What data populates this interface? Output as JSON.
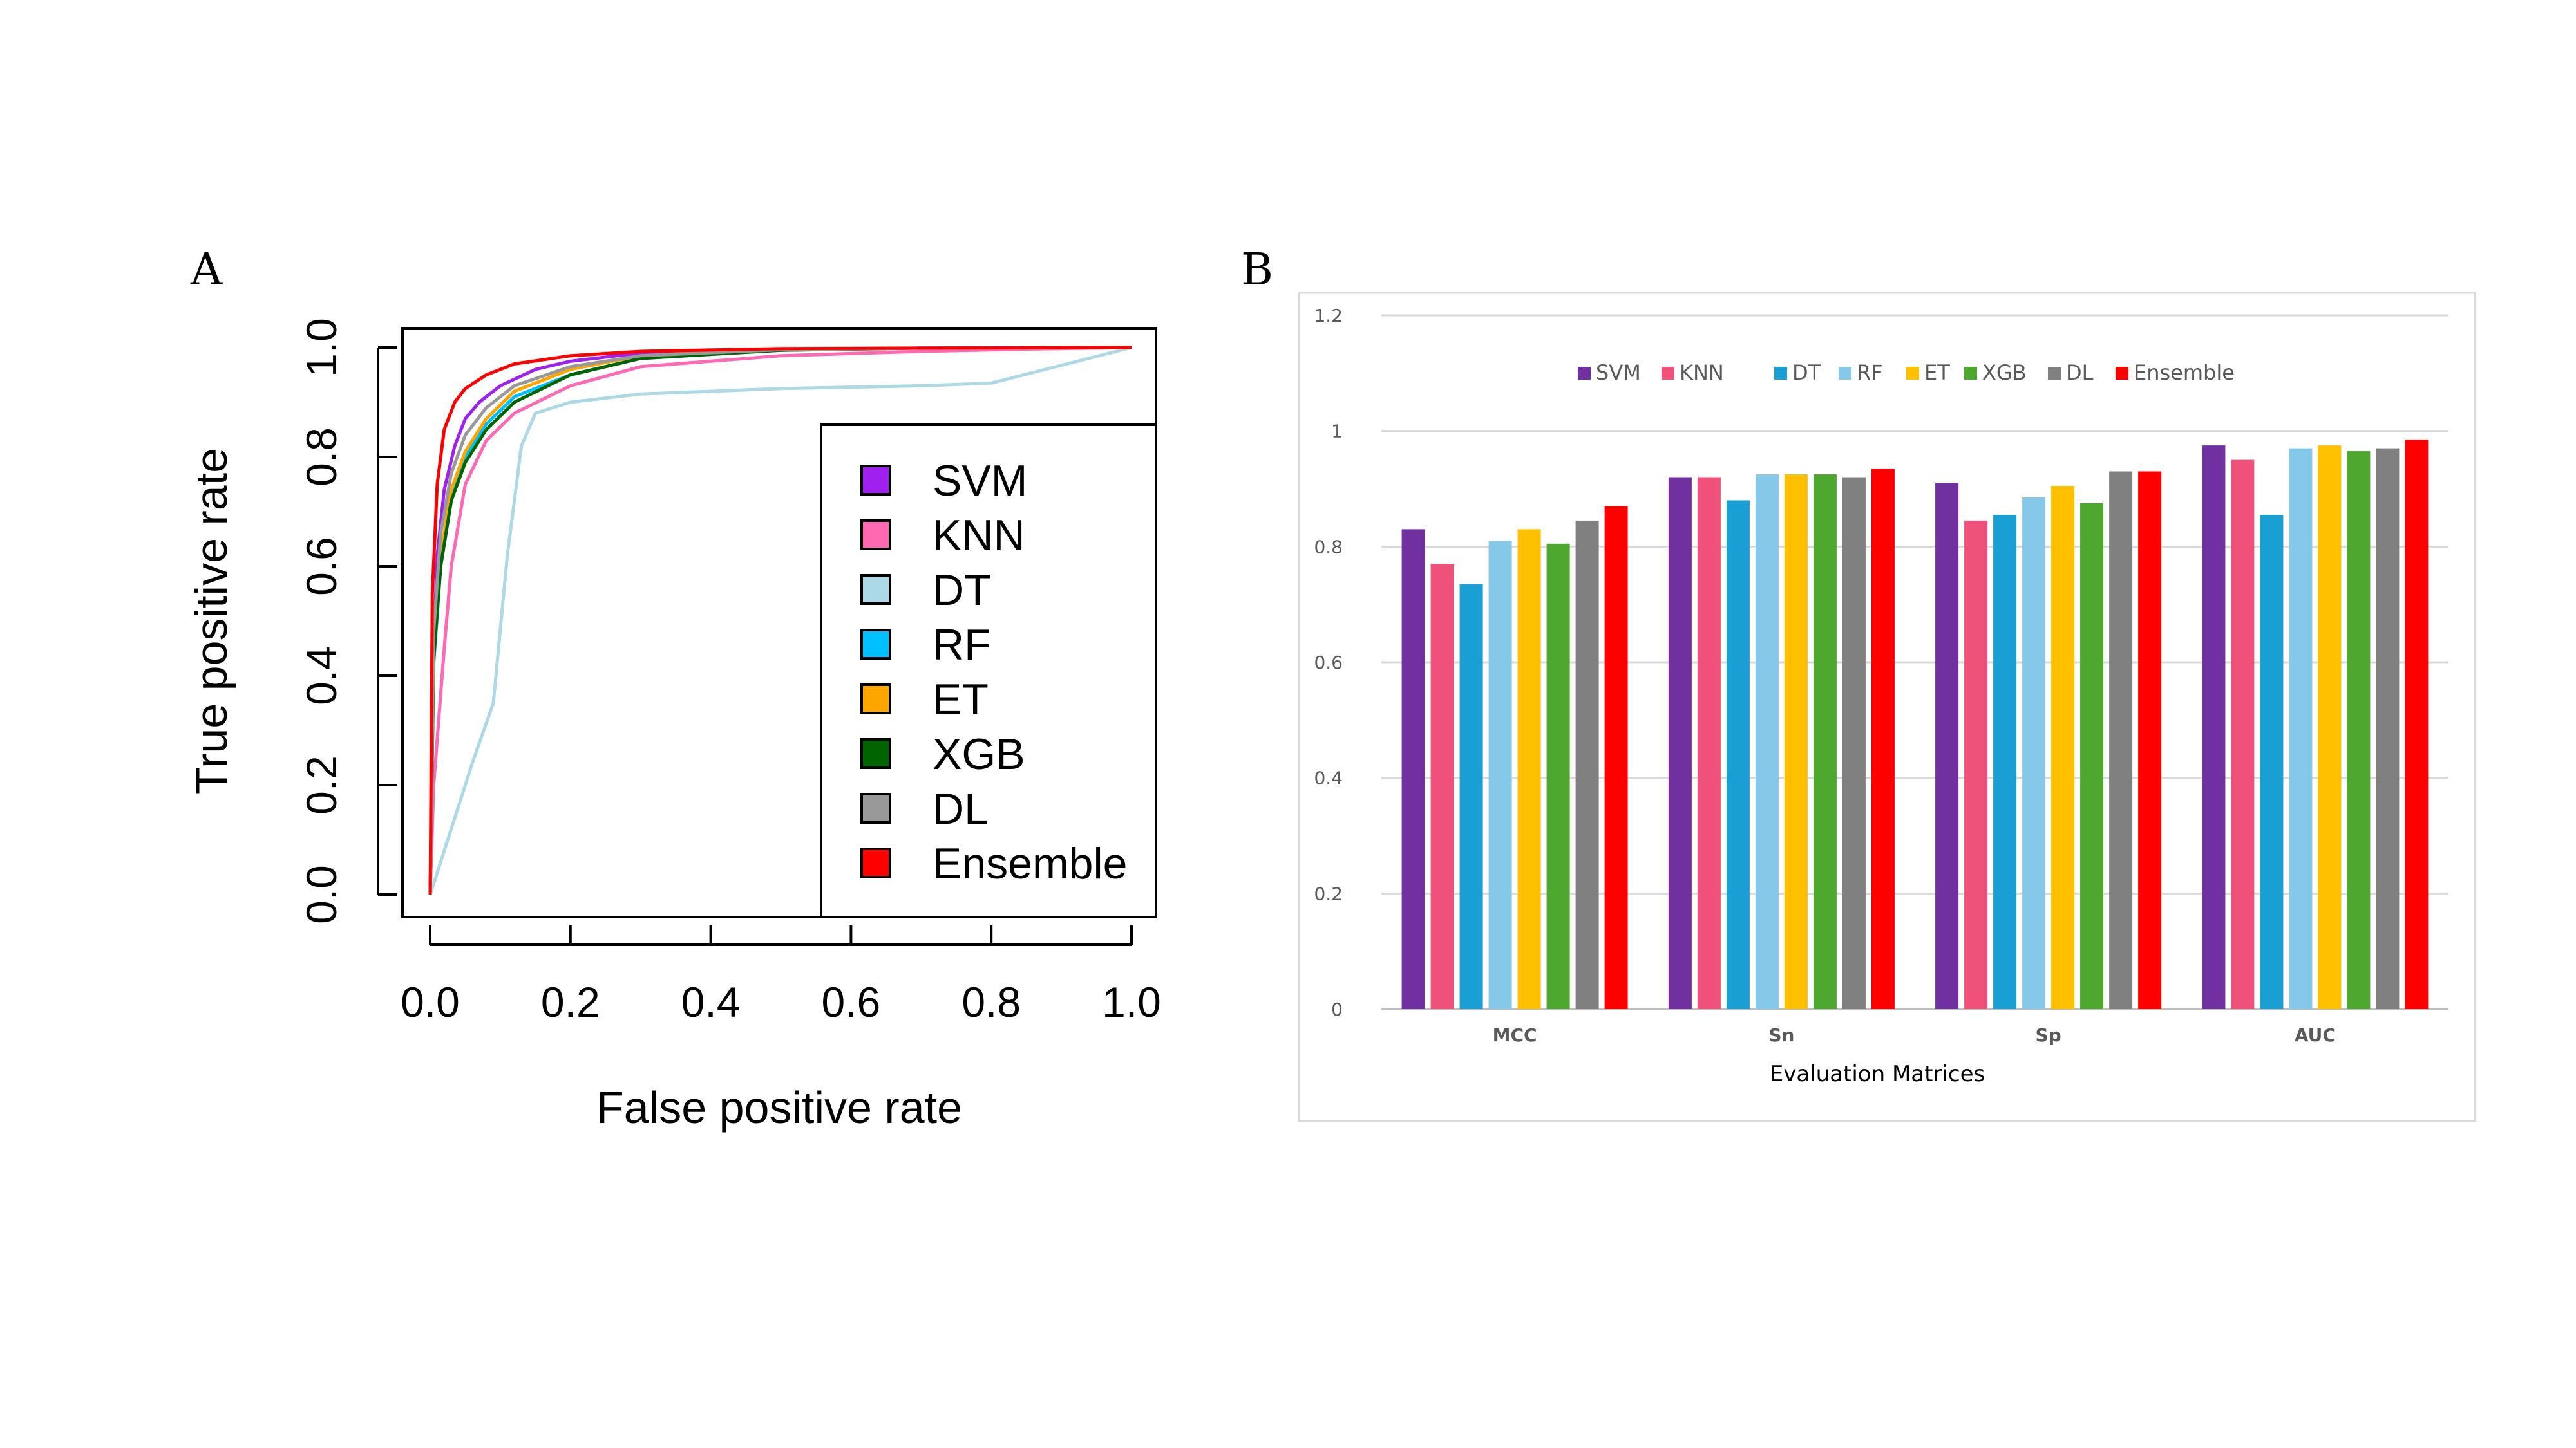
{
  "panels": {
    "a": "A",
    "b": "B"
  },
  "chart_data": [
    {
      "type": "line",
      "title": "",
      "xlabel": "False positive rate",
      "ylabel": "True positive rate",
      "xlim": [
        0,
        1
      ],
      "ylim": [
        0,
        1
      ],
      "xticks": [
        "0.0",
        "0.2",
        "0.4",
        "0.6",
        "0.8",
        "1.0"
      ],
      "yticks": [
        "0.0",
        "0.2",
        "0.4",
        "0.6",
        "0.8",
        "1.0"
      ],
      "legend_position": "bottom-right",
      "series": [
        {
          "name": "SVM",
          "color": "#a020f0",
          "x": [
            0,
            0.005,
            0.01,
            0.02,
            0.035,
            0.05,
            0.07,
            0.1,
            0.15,
            0.2,
            0.3,
            0.5,
            0.7,
            1.0
          ],
          "y": [
            0,
            0.45,
            0.62,
            0.74,
            0.82,
            0.87,
            0.9,
            0.93,
            0.96,
            0.975,
            0.99,
            0.997,
            0.999,
            1.0
          ]
        },
        {
          "name": "KNN",
          "color": "#ff69b4",
          "x": [
            0,
            0.005,
            0.02,
            0.03,
            0.05,
            0.08,
            0.12,
            0.2,
            0.3,
            0.5,
            0.7,
            0.85,
            1.0
          ],
          "y": [
            0,
            0.2,
            0.45,
            0.6,
            0.75,
            0.83,
            0.88,
            0.93,
            0.965,
            0.985,
            0.993,
            0.997,
            1.0
          ]
        },
        {
          "name": "DT",
          "color": "#add8e6",
          "x": [
            0,
            0.03,
            0.06,
            0.09,
            0.11,
            0.13,
            0.15,
            0.2,
            0.3,
            0.5,
            0.7,
            0.8,
            1.0
          ],
          "y": [
            0,
            0.12,
            0.24,
            0.35,
            0.62,
            0.82,
            0.88,
            0.9,
            0.915,
            0.925,
            0.93,
            0.935,
            1.0
          ]
        },
        {
          "name": "RF",
          "color": "#00bfff",
          "x": [
            0,
            0.005,
            0.015,
            0.03,
            0.05,
            0.08,
            0.12,
            0.2,
            0.3,
            0.5,
            0.7,
            1.0
          ],
          "y": [
            0,
            0.42,
            0.6,
            0.72,
            0.8,
            0.86,
            0.91,
            0.95,
            0.98,
            0.995,
            0.999,
            1.0
          ]
        },
        {
          "name": "ET",
          "color": "#ffa500",
          "x": [
            0,
            0.005,
            0.015,
            0.03,
            0.05,
            0.08,
            0.12,
            0.2,
            0.3,
            0.5,
            0.7,
            1.0
          ],
          "y": [
            0,
            0.44,
            0.62,
            0.74,
            0.81,
            0.87,
            0.92,
            0.96,
            0.985,
            0.997,
            0.999,
            1.0
          ]
        },
        {
          "name": "XGB",
          "color": "#006400",
          "x": [
            0,
            0.005,
            0.015,
            0.03,
            0.05,
            0.08,
            0.12,
            0.2,
            0.3,
            0.5,
            0.7,
            1.0
          ],
          "y": [
            0,
            0.43,
            0.6,
            0.72,
            0.79,
            0.85,
            0.9,
            0.95,
            0.98,
            0.995,
            0.999,
            1.0
          ]
        },
        {
          "name": "DL",
          "color": "#999999",
          "x": [
            0,
            0.005,
            0.015,
            0.03,
            0.05,
            0.08,
            0.12,
            0.2,
            0.3,
            0.5,
            0.7,
            1.0
          ],
          "y": [
            0,
            0.48,
            0.66,
            0.77,
            0.84,
            0.89,
            0.93,
            0.965,
            0.985,
            0.996,
            0.999,
            1.0
          ]
        },
        {
          "name": "Ensemble",
          "color": "#ff0000",
          "x": [
            0,
            0.003,
            0.01,
            0.02,
            0.035,
            0.05,
            0.08,
            0.12,
            0.2,
            0.3,
            0.5,
            0.7,
            1.0
          ],
          "y": [
            0,
            0.55,
            0.75,
            0.85,
            0.9,
            0.925,
            0.95,
            0.97,
            0.985,
            0.993,
            0.998,
            0.999,
            1.0
          ]
        }
      ]
    },
    {
      "type": "bar",
      "title": "",
      "xlabel": "Evaluation Matrices",
      "ylabel": "",
      "ylim": [
        0,
        1.2
      ],
      "yticks": [
        "0",
        "0.2",
        "0.4",
        "0.6",
        "0.8",
        "1",
        "1.2"
      ],
      "grid": true,
      "legend_position": "top",
      "categories": [
        "MCC",
        "Sn",
        "Sp",
        "AUC"
      ],
      "series": [
        {
          "name": "SVM",
          "color": "#7030a0",
          "values": [
            0.83,
            0.92,
            0.91,
            0.975
          ]
        },
        {
          "name": "KNN",
          "color": "#f0517a",
          "values": [
            0.77,
            0.92,
            0.845,
            0.95
          ]
        },
        {
          "name": "DT",
          "color": "#1a9fd4",
          "values": [
            0.735,
            0.88,
            0.855,
            0.855
          ]
        },
        {
          "name": "RF",
          "color": "#85c8ea",
          "values": [
            0.81,
            0.925,
            0.885,
            0.97
          ]
        },
        {
          "name": "ET",
          "color": "#ffc000",
          "values": [
            0.83,
            0.925,
            0.905,
            0.975
          ]
        },
        {
          "name": "XGB",
          "color": "#4ea72e",
          "values": [
            0.805,
            0.925,
            0.875,
            0.965
          ]
        },
        {
          "name": "DL",
          "color": "#808080",
          "values": [
            0.845,
            0.92,
            0.93,
            0.97
          ]
        },
        {
          "name": "Ensemble",
          "color": "#ff0000",
          "values": [
            0.87,
            0.935,
            0.93,
            0.985
          ]
        }
      ]
    }
  ]
}
